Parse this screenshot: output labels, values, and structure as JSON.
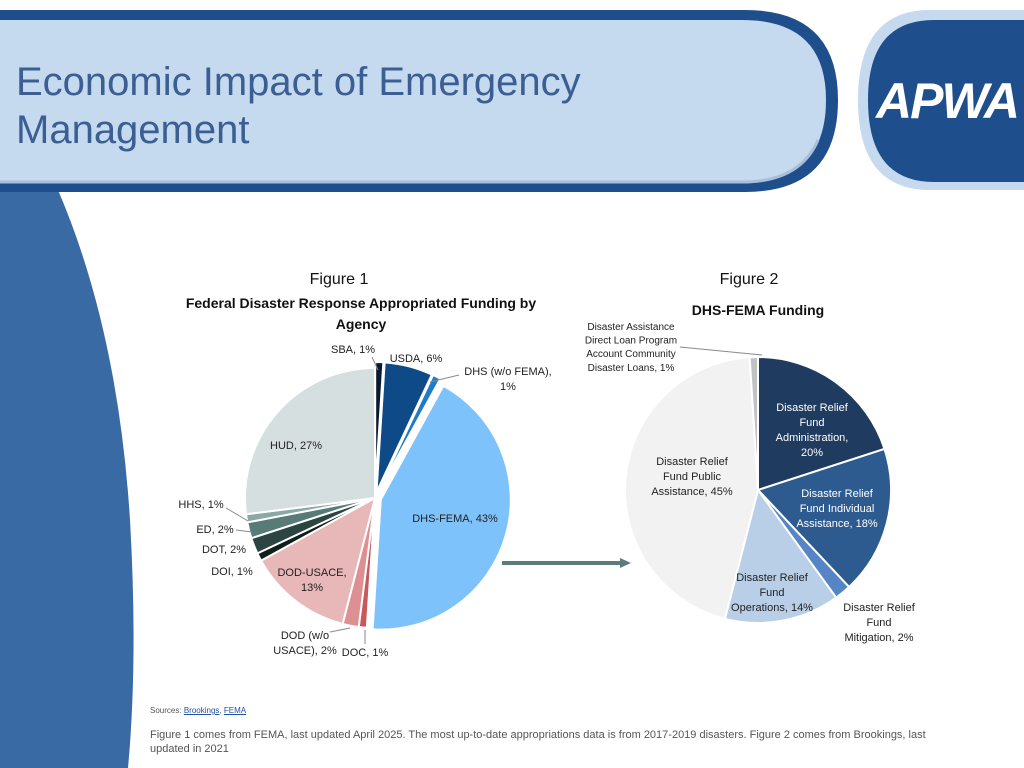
{
  "slide": {
    "title": "Economic Impact of Emergency Management",
    "logo_text": "APWA",
    "sources_label": "Sources:",
    "source_1": "Brookings",
    "source_sep": ",",
    "source_2": "FEMA",
    "footnote": "Figure 1 comes from FEMA, last updated April 2025. The most up-to-date appropriations data is from 2017-2019 disasters. Figure 2 comes from Brookings, last updated in 2021"
  },
  "colors": {
    "header_band": "#c5d9ef",
    "header_border": "#1f4e8c",
    "left_band": "#3a6aa4",
    "title_text": "#3b5f93",
    "arrow": "#5b7c7a"
  },
  "chart_data": [
    {
      "type": "pie",
      "figure_label": "Figure 1",
      "title": "Federal Disaster Response Appropriated Funding by Agency",
      "slices": [
        {
          "name": "SBA",
          "value": 1,
          "label": "SBA, 1%",
          "color": "#0a1a2e"
        },
        {
          "name": "USDA",
          "value": 6,
          "label": "USDA, 6%",
          "color": "#0d4a87"
        },
        {
          "name": "DHS (w/o FEMA)",
          "value": 1,
          "label": "DHS (w/o FEMA), 1%",
          "color": "#1f7ac7"
        },
        {
          "name": "DHS-FEMA",
          "value": 43,
          "label": "DHS-FEMA, 43%",
          "color": "#7dc2fb"
        },
        {
          "name": "DOC",
          "value": 1,
          "label": "DOC, 1%",
          "color": "#c8585a"
        },
        {
          "name": "DOD (w/o USACE)",
          "value": 2,
          "label": "DOD (w/o USACE), 2%",
          "color": "#dd8f91"
        },
        {
          "name": "DOD-USACE",
          "value": 13,
          "label": "DOD-USACE, 13%",
          "color": "#e8b7b8"
        },
        {
          "name": "DOI",
          "value": 1,
          "label": "DOI, 1%",
          "color": "#101e1c"
        },
        {
          "name": "DOT",
          "value": 2,
          "label": "DOT, 2%",
          "color": "#2c4442"
        },
        {
          "name": "ED",
          "value": 2,
          "label": "ED, 2%",
          "color": "#587b78"
        },
        {
          "name": "HHS",
          "value": 1,
          "label": "HHS, 1%",
          "color": "#8aa9a6"
        },
        {
          "name": "HUD",
          "value": 27,
          "label": "HUD, 27%",
          "color": "#d5dfdf"
        }
      ]
    },
    {
      "type": "pie",
      "figure_label": "Figure 2",
      "title": "DHS-FEMA Funding",
      "slices": [
        {
          "name": "Disaster Relief Fund Administration",
          "value": 20,
          "label": "Disaster Relief Fund Administration, 20%",
          "color": "#1f3b5f"
        },
        {
          "name": "Disaster Relief Fund Individual Assistance",
          "value": 18,
          "label": "Disaster Relief Fund Individual Assistance, 18%",
          "color": "#2e5b8f"
        },
        {
          "name": "Disaster Relief Fund Mitigation",
          "value": 2,
          "label": "Disaster Relief Fund Mitigation, 2%",
          "color": "#5585c4"
        },
        {
          "name": "Disaster Relief Fund Operations",
          "value": 14,
          "label": "Disaster Relief Fund Operations, 14%",
          "color": "#b9cfe8"
        },
        {
          "name": "Disaster Relief Fund Public Assistance",
          "value": 45,
          "label": "Disaster Relief Fund Public Assistance, 45%",
          "color": "#f2f2f2"
        },
        {
          "name": "Disaster Assistance Direct Loan Program Account Community Disaster Loans",
          "value": 1,
          "label": "Disaster Assistance Direct Loan Program Account Community Disaster Loans, 1%",
          "color": "#bfc3c6"
        }
      ]
    }
  ]
}
